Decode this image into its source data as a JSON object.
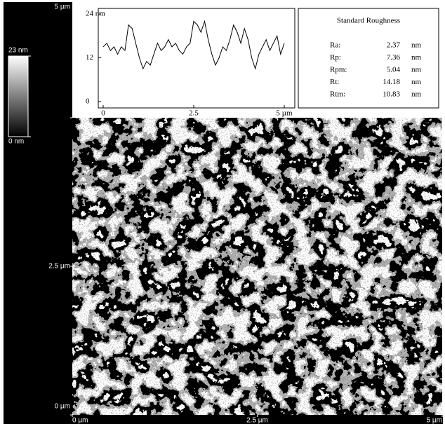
{
  "chart_data": [
    {
      "type": "line",
      "x": [
        0,
        0.1,
        0.2,
        0.3,
        0.4,
        0.5,
        0.6,
        0.7,
        0.8,
        0.9,
        1,
        1.1,
        1.2,
        1.3,
        1.4,
        1.5,
        1.6,
        1.7,
        1.8,
        1.9,
        2,
        2.1,
        2.2,
        2.3,
        2.4,
        2.5,
        2.6,
        2.7,
        2.8,
        2.9,
        3,
        3.1,
        3.2,
        3.3,
        3.4,
        3.5,
        3.6,
        3.7,
        3.8,
        3.9,
        4,
        4.1,
        4.2,
        4.3,
        4.4,
        4.5,
        4.6,
        4.7,
        4.8,
        4.9,
        5
      ],
      "series": [
        {
          "color": "#000000",
          "values": [
            15,
            16,
            14,
            15,
            13,
            15,
            14,
            21,
            20,
            16,
            12,
            9,
            11,
            10,
            13,
            16,
            14,
            15,
            17,
            15,
            16,
            14,
            13,
            15,
            16,
            22,
            21,
            19,
            22,
            17,
            13,
            10,
            12,
            15,
            14,
            17,
            21,
            19,
            16,
            20,
            17,
            12,
            9,
            13,
            15,
            17,
            14,
            16,
            18,
            13,
            16
          ]
        }
      ],
      "xlim": [
        0,
        5
      ],
      "xticks": [
        0,
        2.5,
        {
          "value": 5,
          "label": "5 µm"
        }
      ],
      "ylim": [
        0,
        24
      ],
      "yticks": [
        0,
        12,
        {
          "value": 24,
          "label": "24 nm"
        }
      ]
    },
    {
      "type": "image",
      "xlim": [
        0,
        5
      ],
      "xticks": [
        {
          "value": 0,
          "label": "0 µm"
        },
        {
          "value": 2.5,
          "label": "2.5 µm"
        },
        {
          "value": 5,
          "label": "5 µm"
        }
      ],
      "ylim": [
        0,
        5
      ],
      "yticks": [
        {
          "value": 0,
          "label": "0 µm"
        },
        {
          "value": 2.5,
          "label": "2.5 µm"
        },
        {
          "value": 5,
          "label": "5 µm"
        }
      ],
      "colorbar": {
        "lim": [
          0,
          23
        ],
        "ticks": [
          {
            "value": 0,
            "label": "0 nm"
          },
          {
            "value": 23,
            "label": "23 nm"
          }
        ]
      }
    }
  ],
  "table": {
    "title": "Standard Roughness",
    "rows": [
      [
        "Ra:",
        2.37,
        "nm"
      ],
      [
        "Rp:",
        7.36,
        "nm"
      ],
      [
        "Rpm:",
        5.04,
        "nm"
      ],
      [
        "Rt:",
        14.18,
        "nm"
      ],
      [
        "Rtm:",
        10.83,
        "nm"
      ]
    ]
  }
}
